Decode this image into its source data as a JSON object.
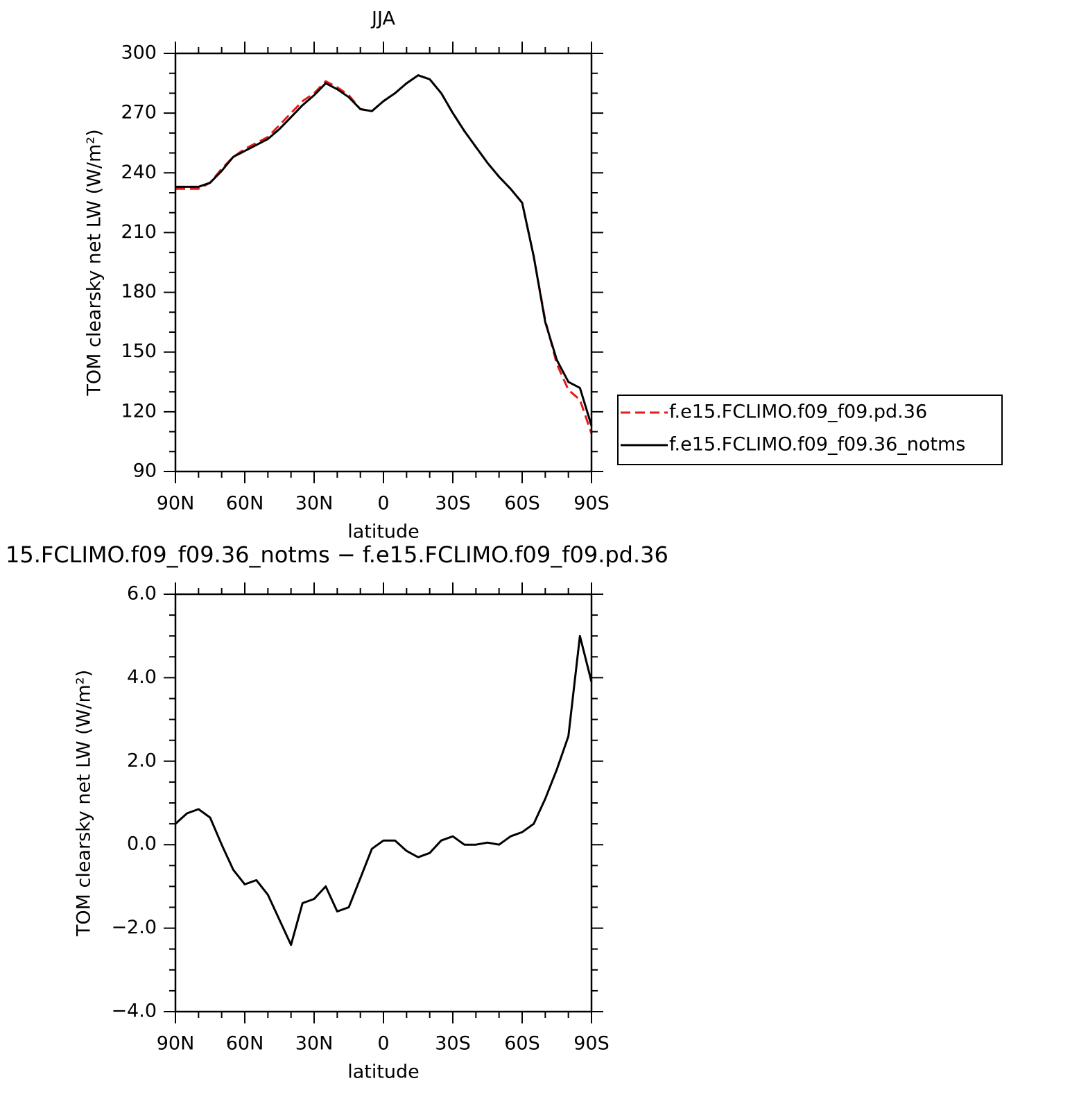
{
  "chart_data": [
    {
      "type": "line",
      "title": "JJA",
      "xlabel": "latitude",
      "ylabel": "TOM clearsky net LW (W/m²)",
      "x": [
        90,
        85,
        80,
        75,
        70,
        65,
        60,
        55,
        50,
        45,
        40,
        35,
        30,
        25,
        20,
        15,
        10,
        5,
        0,
        -5,
        -10,
        -15,
        -20,
        -25,
        -30,
        -35,
        -40,
        -45,
        -50,
        -55,
        -60,
        -65,
        -70,
        -75,
        -80,
        -85,
        -90
      ],
      "series": [
        {
          "name": "f.e15.FCLIMO.f09_f09.pd.36",
          "color": "#e41a1c",
          "dashed": true,
          "values": [
            232,
            232,
            232,
            235,
            242,
            248,
            252,
            255,
            258,
            264,
            270,
            276,
            280,
            286,
            283,
            279,
            272,
            271,
            276,
            280,
            285,
            289,
            287,
            280,
            270,
            261,
            253,
            245,
            238,
            232,
            225,
            198,
            166,
            144,
            131,
            126,
            109
          ]
        },
        {
          "name": "f.e15.FCLIMO.f09_f09.36_notms",
          "color": "#000000",
          "dashed": false,
          "values": [
            233,
            233,
            233,
            235,
            241,
            248,
            251,
            254,
            257,
            262,
            268,
            274,
            279,
            285,
            282,
            278,
            272,
            271,
            276,
            280,
            285,
            289,
            287,
            280,
            270,
            261,
            253,
            245,
            238,
            232,
            225,
            198,
            165,
            146,
            135,
            132,
            113
          ]
        }
      ],
      "xlim": [
        90,
        -90
      ],
      "xticks": [
        {
          "value": 90,
          "label": "90N"
        },
        {
          "value": 60,
          "label": "60N"
        },
        {
          "value": 30,
          "label": "30N"
        },
        0,
        {
          "value": -30,
          "label": "30S"
        },
        {
          "value": -60,
          "label": "60S"
        },
        {
          "value": -90,
          "label": "90S"
        }
      ],
      "xminorticks": [
        80,
        70,
        50,
        40,
        20,
        10,
        -10,
        -20,
        -40,
        -50,
        -70,
        -80
      ],
      "ylim": [
        90,
        300
      ],
      "yticks": [
        90,
        120,
        150,
        180,
        210,
        240,
        270,
        300
      ],
      "yminorticks": [
        100,
        110,
        130,
        140,
        160,
        170,
        190,
        200,
        220,
        230,
        250,
        260,
        280,
        290
      ],
      "legend": "outside-right"
    },
    {
      "type": "line",
      "title": "15.FCLIMO.f09_f09.36_notms − f.e15.FCLIMO.f09_f09.pd.36",
      "xlabel": "latitude",
      "ylabel": "TOM clearsky net LW (W/m²)",
      "x": [
        90,
        85,
        80,
        75,
        70,
        65,
        60,
        55,
        50,
        45,
        40,
        35,
        30,
        25,
        20,
        15,
        10,
        5,
        0,
        -5,
        -10,
        -15,
        -20,
        -25,
        -30,
        -35,
        -40,
        -45,
        -50,
        -55,
        -60,
        -65,
        -70,
        -75,
        -80,
        -85,
        -90
      ],
      "series": [
        {
          "color": "#000000",
          "dashed": false,
          "values": [
            0.5,
            0.75,
            0.85,
            0.65,
            0.0,
            -0.6,
            -0.95,
            -0.85,
            -1.2,
            -1.8,
            -2.4,
            -1.4,
            -1.3,
            -1.0,
            -1.6,
            -1.5,
            -0.8,
            -0.1,
            0.1,
            0.1,
            -0.15,
            -0.3,
            -0.2,
            0.1,
            0.2,
            0.0,
            0.0,
            0.05,
            0.0,
            0.2,
            0.3,
            0.5,
            1.1,
            1.8,
            2.6,
            5.0,
            3.9
          ]
        }
      ],
      "xlim": [
        90,
        -90
      ],
      "xticks": [
        {
          "value": 90,
          "label": "90N"
        },
        {
          "value": 60,
          "label": "60N"
        },
        {
          "value": 30,
          "label": "30N"
        },
        0,
        {
          "value": -30,
          "label": "30S"
        },
        {
          "value": -60,
          "label": "60S"
        },
        {
          "value": -90,
          "label": "90S"
        }
      ],
      "xminorticks": [
        80,
        70,
        50,
        40,
        20,
        10,
        -10,
        -20,
        -40,
        -50,
        -70,
        -80
      ],
      "ylim": [
        -4,
        6
      ],
      "yticks": [
        {
          "value": -4,
          "label": "−4.0"
        },
        {
          "value": -2,
          "label": "−2.0"
        },
        {
          "value": 0,
          "label": "0.0"
        },
        {
          "value": 2,
          "label": "2.0"
        },
        {
          "value": 4,
          "label": "4.0"
        },
        {
          "value": 6,
          "label": "6.0"
        }
      ],
      "yminorticks": [
        -3.5,
        -3,
        -2.5,
        -1.5,
        -1,
        -0.5,
        0.5,
        1,
        1.5,
        2.5,
        3,
        3.5,
        4.5,
        5,
        5.5
      ]
    }
  ]
}
